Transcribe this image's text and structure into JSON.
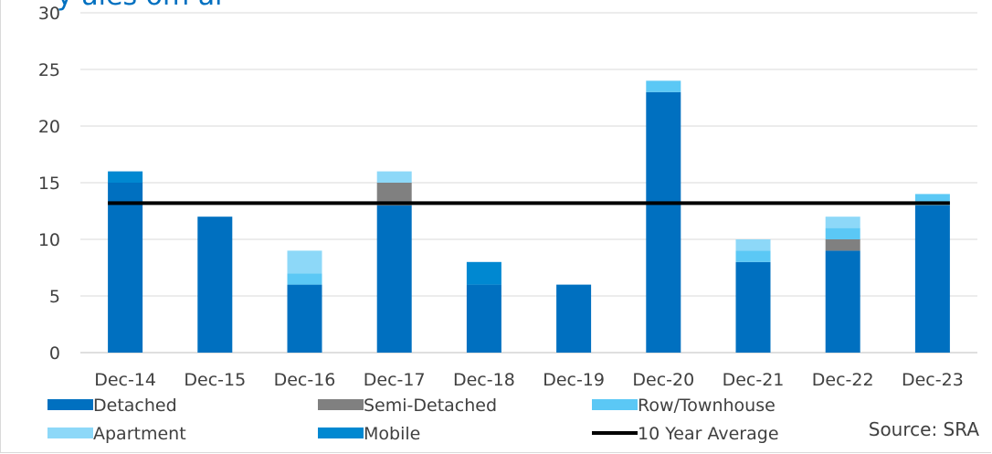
{
  "chart_data": {
    "type": "bar",
    "stacked": true,
    "title": "",
    "xlabel": "",
    "ylabel": "",
    "categories": [
      "Dec-14",
      "Dec-15",
      "Dec-16",
      "Dec-17",
      "Dec-18",
      "Dec-19",
      "Dec-20",
      "Dec-21",
      "Dec-22",
      "Dec-23"
    ],
    "series": [
      {
        "name": "Detached",
        "color": "#0070c0",
        "values": [
          15,
          12,
          6,
          13,
          6,
          6,
          23,
          8,
          9,
          13
        ]
      },
      {
        "name": "Semi-Detached",
        "color": "#808080",
        "values": [
          0,
          0,
          0,
          2,
          0,
          0,
          0,
          0,
          1,
          0
        ]
      },
      {
        "name": "Row/Townhouse",
        "color": "#5bc8f5",
        "values": [
          0,
          0,
          1,
          0,
          0,
          0,
          1,
          1,
          1,
          1
        ]
      },
      {
        "name": "Apartment",
        "color": "#8dd8f8",
        "values": [
          0,
          0,
          2,
          1,
          0,
          0,
          0,
          1,
          1,
          0
        ]
      },
      {
        "name": "Mobile",
        "color": "#0088d1",
        "values": [
          1,
          0,
          0,
          0,
          2,
          0,
          0,
          0,
          0,
          0
        ]
      }
    ],
    "average": {
      "name": "10 Year Average",
      "value": 13.2,
      "color": "#000000"
    },
    "ylim": [
      0,
      30
    ],
    "yticks": [
      0,
      5,
      10,
      15,
      20,
      25,
      30
    ],
    "grid": true,
    "legend_position": "bottom"
  },
  "title_fragment": "   y   ales  om  ar   ",
  "source": "Source: SRA"
}
